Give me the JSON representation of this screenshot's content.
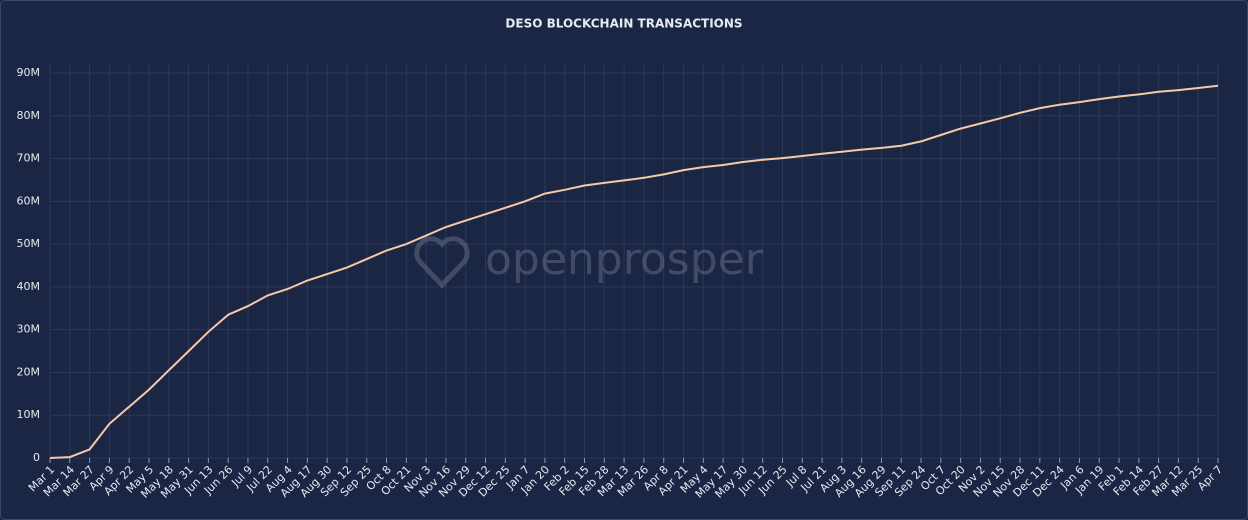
{
  "chart_data": {
    "type": "line",
    "title": "DESO BLOCKCHAIN TRANSACTIONS",
    "watermark": "openprosper",
    "categories": [
      "Mar 1",
      "Mar 14",
      "Mar 27",
      "Apr 9",
      "Apr 22",
      "May 5",
      "May 18",
      "May 31",
      "Jun 13",
      "Jun 26",
      "Jul 9",
      "Jul 22",
      "Aug 4",
      "Aug 17",
      "Aug 30",
      "Sep 12",
      "Sep 25",
      "Oct 8",
      "Oct 21",
      "Nov 3",
      "Nov 16",
      "Nov 29",
      "Dec 12",
      "Dec 25",
      "Jan 7",
      "Jan 20",
      "Feb 2",
      "Feb 15",
      "Feb 28",
      "Mar 13",
      "Mar 26",
      "Apr 8",
      "Apr 21",
      "May 4",
      "May 17",
      "May 30",
      "Jun 12",
      "Jun 25",
      "Jul 8",
      "Jul 21",
      "Aug 3",
      "Aug 16",
      "Aug 29",
      "Sep 11",
      "Sep 24",
      "Oct 7",
      "Oct 20",
      "Nov 2",
      "Nov 15",
      "Nov 28",
      "Dec 11",
      "Dec 24",
      "Jan 6",
      "Jan 19",
      "Feb 1",
      "Feb 14",
      "Feb 27",
      "Mar 12",
      "Mar 25",
      "Apr 7"
    ],
    "values": [
      0,
      200000,
      2000000,
      8000000,
      12000000,
      16000000,
      20500000,
      25000000,
      29500000,
      33500000,
      35500000,
      38000000,
      39500000,
      41500000,
      43000000,
      44500000,
      46500000,
      48500000,
      50000000,
      52000000,
      54000000,
      55500000,
      57000000,
      58500000,
      60000000,
      61800000,
      62700000,
      63700000,
      64300000,
      64900000,
      65500000,
      66300000,
      67300000,
      68000000,
      68500000,
      69200000,
      69700000,
      70100000,
      70600000,
      71100000,
      71600000,
      72100000,
      72500000,
      73000000,
      74000000,
      75500000,
      77000000,
      78200000,
      79400000,
      80700000,
      81800000,
      82600000,
      83200000,
      83900000,
      84500000,
      85000000,
      85600000,
      86000000,
      86500000,
      87000000
    ],
    "color": "#f7c9a8",
    "ylim": [
      0,
      90000000
    ],
    "yticks": [
      0,
      {
        "value": 10000000,
        "label": "10M"
      },
      {
        "value": 20000000,
        "label": "20M"
      },
      {
        "value": 30000000,
        "label": "30M"
      },
      {
        "value": 40000000,
        "label": "40M"
      },
      {
        "value": 50000000,
        "label": "50M"
      },
      {
        "value": 60000000,
        "label": "60M"
      },
      {
        "value": 70000000,
        "label": "70M"
      },
      {
        "value": 80000000,
        "label": "80M"
      },
      {
        "value": 90000000,
        "label": "90M"
      }
    ],
    "grid": true
  }
}
